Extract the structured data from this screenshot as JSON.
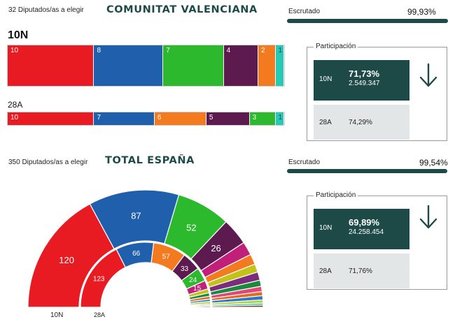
{
  "valencia": {
    "seats_text": "32 Diputados/as a elegir",
    "title": "COMUNITAT VALENCIANA",
    "escrutado_label": "Escrutado",
    "escrutado_value": "99,93%",
    "escrutado_fraction": 0.9993,
    "row_10n_label": "10N",
    "row_28a_label": "28A",
    "bars_10n": [
      {
        "label": "10",
        "color": "#e81b23"
      },
      {
        "label": "8",
        "color": "#1f5fac"
      },
      {
        "label": "7",
        "color": "#2db92d"
      },
      {
        "label": "4",
        "color": "#5c1a4f"
      },
      {
        "label": "2",
        "color": "#f47a20"
      },
      {
        "label": "1",
        "color": "#26c9b6"
      }
    ],
    "bars_28a": [
      {
        "label": "10",
        "color": "#e81b23"
      },
      {
        "label": "7",
        "color": "#1f5fac"
      },
      {
        "label": "6",
        "color": "#f47a20"
      },
      {
        "label": "5",
        "color": "#5c1a4f"
      },
      {
        "label": "3",
        "color": "#2db92d"
      },
      {
        "label": "1",
        "color": "#26c9b6"
      }
    ],
    "participacion_label": "Participación",
    "p10n_label": "10N",
    "p10n_pct": "71,73%",
    "p10n_votes": "2.549.347",
    "p28a_label": "28A",
    "p28a_pct": "74,29%"
  },
  "espana": {
    "seats_text": "350 Diputados/as a elegir",
    "title": "TOTAL ESPAÑA",
    "escrutado_label": "Escrutado",
    "escrutado_value": "99,54%",
    "escrutado_fraction": 0.9954,
    "participacion_label": "Participación",
    "p10n_label": "10N",
    "p10n_pct": "69,89%",
    "p10n_votes": "24.258.454",
    "p28a_label": "28A",
    "p28a_pct": "71,76%",
    "outer_label": "10N",
    "inner_label": "28A",
    "outer_arc": [
      {
        "value": 120,
        "label": "120",
        "color": "#e81b23"
      },
      {
        "value": 87,
        "label": "87",
        "color": "#1f5fac"
      },
      {
        "value": 52,
        "label": "52",
        "color": "#2db92d"
      },
      {
        "value": 26,
        "label": "26",
        "color": "#5c1a4f"
      },
      {
        "value": 13,
        "label": "",
        "color": "#c1207a"
      },
      {
        "value": 10,
        "label": "",
        "color": "#f47a20"
      },
      {
        "value": 8,
        "label": "",
        "color": "#c2c21a"
      },
      {
        "value": 8,
        "label": "",
        "color": "#7b2c7b"
      },
      {
        "value": 6,
        "label": "",
        "color": "#1c8a3a"
      },
      {
        "value": 5,
        "label": "",
        "color": "#e0457b"
      },
      {
        "value": 4,
        "label": "",
        "color": "#e36b1e"
      },
      {
        "value": 4,
        "label": "",
        "color": "#2a78c8"
      },
      {
        "value": 3,
        "label": "",
        "color": "#b5d334"
      },
      {
        "value": 2,
        "label": "",
        "color": "#26c9b6"
      },
      {
        "value": 2,
        "label": "",
        "color": "#7d3e1c"
      }
    ],
    "inner_arc": [
      {
        "value": 123,
        "label": "123",
        "color": "#e81b23"
      },
      {
        "value": 66,
        "label": "66",
        "color": "#1f5fac"
      },
      {
        "value": 57,
        "label": "57",
        "color": "#f47a20"
      },
      {
        "value": 33,
        "label": "33",
        "color": "#5c1a4f"
      },
      {
        "value": 24,
        "label": "24",
        "color": "#2db92d"
      },
      {
        "value": 15,
        "label": "15",
        "color": "#c1207a"
      },
      {
        "value": 7,
        "label": "",
        "color": "#c2c21a"
      },
      {
        "value": 6,
        "label": "",
        "color": "#1c8a3a"
      },
      {
        "value": 5,
        "label": "",
        "color": "#e36b1e"
      },
      {
        "value": 4,
        "label": "",
        "color": "#2a78c8"
      },
      {
        "value": 4,
        "label": "",
        "color": "#b5d334"
      },
      {
        "value": 2,
        "label": "",
        "color": "#7b2c7b"
      },
      {
        "value": 2,
        "label": "",
        "color": "#26c9b6"
      },
      {
        "value": 2,
        "label": "",
        "color": "#7d3e1c"
      }
    ]
  }
}
